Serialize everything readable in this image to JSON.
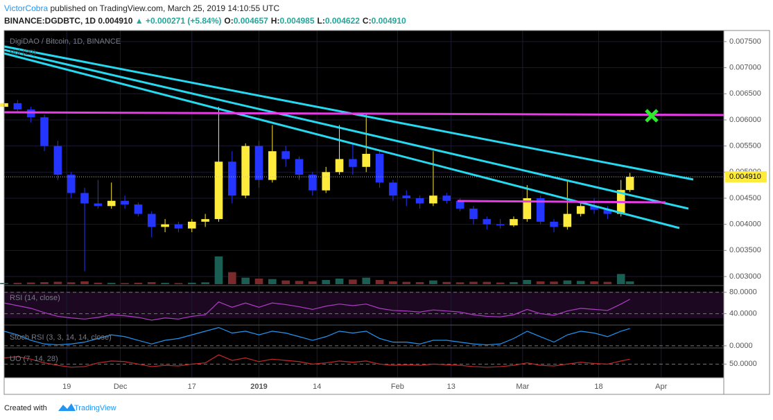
{
  "header": {
    "publisher": "VictorCobra",
    "published": "published on TradingView.com, March 25, 2019 14:10:55 UTC",
    "symbol": "BINANCE:DGDBTC, 1D",
    "last": "0.004910",
    "change": "▲ +0.000271 (+5.84%)",
    "ohlc": [
      {
        "key": "O:",
        "value": "0.004657"
      },
      {
        "key": "H:",
        "value": "0.004985"
      },
      {
        "key": "L:",
        "value": "0.004622"
      },
      {
        "key": "C:",
        "value": "0.004910"
      }
    ]
  },
  "chart_data": [
    {
      "type": "candlestick",
      "title": "DigiDAO / Bitcoin, 1D, BINANCE",
      "volume_title": "Vol (20)",
      "up_color": "#ffeb3b",
      "down_color": "#2435ff",
      "price_label": "0.004910",
      "x": [
        0,
        3,
        6,
        9,
        12,
        15,
        18,
        21,
        24,
        27,
        30,
        33,
        36,
        39,
        42,
        45,
        48,
        51,
        54,
        57,
        60,
        63,
        66,
        69,
        72,
        75,
        78,
        81,
        84,
        87,
        90,
        93,
        96,
        99,
        102,
        105,
        108,
        111,
        114,
        117,
        120,
        123,
        126,
        129,
        132,
        135,
        138,
        140
      ],
      "open": [
        0.00625,
        0.00632,
        0.0062,
        0.00605,
        0.0055,
        0.00495,
        0.0046,
        0.0044,
        0.00435,
        0.00445,
        0.00438,
        0.0042,
        0.00395,
        0.004,
        0.00392,
        0.00405,
        0.0041,
        0.0052,
        0.00455,
        0.0055,
        0.00485,
        0.0054,
        0.00525,
        0.00495,
        0.00465,
        0.005,
        0.00525,
        0.0051,
        0.00535,
        0.0048,
        0.00455,
        0.0045,
        0.0044,
        0.00455,
        0.00445,
        0.0043,
        0.0041,
        0.004,
        0.00398,
        0.0041,
        0.0045,
        0.00405,
        0.00395,
        0.0042,
        0.00435,
        0.00428,
        0.0042,
        0.004657
      ],
      "high": [
        0.0064,
        0.00638,
        0.00625,
        0.0061,
        0.0056,
        0.005,
        0.0047,
        0.00485,
        0.0048,
        0.00455,
        0.00442,
        0.00425,
        0.0041,
        0.00405,
        0.0041,
        0.0042,
        0.00625,
        0.0054,
        0.00555,
        0.0056,
        0.0059,
        0.0055,
        0.0053,
        0.005,
        0.0051,
        0.0059,
        0.00555,
        0.0061,
        0.0054,
        0.00485,
        0.00465,
        0.00455,
        0.0054,
        0.0046,
        0.0045,
        0.00435,
        0.00415,
        0.0041,
        0.00415,
        0.00475,
        0.00455,
        0.0041,
        0.00485,
        0.0044,
        0.0045,
        0.00435,
        0.00485,
        0.004985
      ],
      "low": [
        0.0062,
        0.00615,
        0.00595,
        0.0054,
        0.00485,
        0.0045,
        0.0031,
        0.0043,
        0.0043,
        0.0043,
        0.00415,
        0.00375,
        0.00385,
        0.00385,
        0.00385,
        0.00395,
        0.00405,
        0.0044,
        0.0045,
        0.0047,
        0.0048,
        0.0051,
        0.00485,
        0.00455,
        0.0046,
        0.00495,
        0.00495,
        0.005,
        0.0047,
        0.00445,
        0.00435,
        0.0043,
        0.00435,
        0.0044,
        0.00425,
        0.004,
        0.0039,
        0.00392,
        0.00395,
        0.00405,
        0.004,
        0.00385,
        0.0039,
        0.00415,
        0.0042,
        0.0041,
        0.00415,
        0.004622
      ],
      "close": [
        0.00632,
        0.0062,
        0.00605,
        0.0055,
        0.00495,
        0.0046,
        0.0044,
        0.00435,
        0.00445,
        0.00438,
        0.0042,
        0.00395,
        0.004,
        0.00392,
        0.00405,
        0.0041,
        0.0052,
        0.00455,
        0.0055,
        0.00485,
        0.0054,
        0.00525,
        0.00495,
        0.00465,
        0.005,
        0.00525,
        0.0051,
        0.00535,
        0.0048,
        0.00455,
        0.0045,
        0.0044,
        0.00455,
        0.00445,
        0.0043,
        0.0041,
        0.004,
        0.00398,
        0.0041,
        0.0045,
        0.00405,
        0.00395,
        0.0042,
        0.00435,
        0.00428,
        0.0042,
        0.004657,
        0.00491
      ],
      "volume": [
        12,
        14,
        18,
        22,
        26,
        20,
        30,
        16,
        14,
        12,
        15,
        22,
        14,
        12,
        16,
        20,
        300,
        130,
        70,
        60,
        55,
        40,
        35,
        30,
        45,
        60,
        50,
        70,
        45,
        30,
        25,
        22,
        40,
        24,
        20,
        26,
        25,
        18,
        22,
        45,
        30,
        28,
        40,
        35,
        30,
        25,
        110,
        30
      ],
      "xlim": [
        0,
        161
      ],
      "ylim": [
        0.002854,
        0.007712
      ],
      "xticks": [
        {
          "value": 14,
          "label": "19"
        },
        {
          "value": 26,
          "label": "Dec"
        },
        {
          "value": 42,
          "label": "17"
        },
        {
          "value": 57,
          "label": "2019"
        },
        {
          "value": 70,
          "label": "14"
        },
        {
          "value": 88,
          "label": "Feb"
        },
        {
          "value": 100,
          "label": "13"
        },
        {
          "value": 116,
          "label": "Mar"
        },
        {
          "value": 133,
          "label": "18"
        },
        {
          "value": 147,
          "label": "Apr"
        }
      ],
      "yticks": [
        {
          "value": 0.003,
          "label": "0.003000"
        },
        {
          "value": 0.0035,
          "label": "0.003500"
        },
        {
          "value": 0.004,
          "label": "0.004000"
        },
        {
          "value": 0.0045,
          "label": "0.004500"
        },
        {
          "value": 0.005,
          "label": "0.005000"
        },
        {
          "value": 0.0055,
          "label": "0.005500"
        },
        {
          "value": 0.006,
          "label": "0.006000"
        },
        {
          "value": 0.0065,
          "label": "0.006500"
        },
        {
          "value": 0.007,
          "label": "0.007000"
        },
        {
          "value": 0.0075,
          "label": "0.007500"
        }
      ],
      "grid": true
    },
    {
      "type": "line",
      "title": "RSI (14, close)",
      "color": "#b03cc8",
      "ylim": [
        20,
        90
      ],
      "yticks": [
        {
          "value": 80,
          "label": "80.0000"
        },
        {
          "value": 40,
          "label": "40.0000"
        }
      ],
      "values": [
        60,
        55,
        50,
        42,
        35,
        32,
        30,
        33,
        38,
        36,
        33,
        28,
        32,
        30,
        35,
        38,
        62,
        52,
        60,
        52,
        60,
        57,
        53,
        48,
        54,
        58,
        55,
        58,
        50,
        46,
        45,
        43,
        47,
        45,
        43,
        38,
        35,
        34,
        38,
        48,
        40,
        37,
        45,
        50,
        48,
        46,
        58,
        67
      ]
    },
    {
      "type": "line",
      "title": "Stoch RSI (3, 3, 14, 14, close)",
      "color": "#2196f3",
      "ylim": [
        -8,
        110
      ],
      "yticks": [
        {
          "value": 0,
          "label": "0.0000"
        }
      ],
      "values": [
        80,
        60,
        30,
        10,
        5,
        10,
        20,
        40,
        60,
        50,
        30,
        10,
        30,
        40,
        60,
        80,
        100,
        70,
        80,
        60,
        80,
        70,
        50,
        30,
        50,
        80,
        70,
        80,
        40,
        20,
        20,
        10,
        30,
        30,
        20,
        10,
        5,
        10,
        40,
        80,
        50,
        20,
        60,
        80,
        70,
        50,
        80,
        95
      ]
    },
    {
      "type": "line",
      "title": "UO (7, 14, 28)",
      "color": "#c62828",
      "ylim": [
        28,
        75
      ],
      "yticks": [
        {
          "value": 50,
          "label": "50.0000"
        }
      ],
      "values": [
        60,
        62,
        58,
        52,
        48,
        45,
        46,
        52,
        55,
        54,
        50,
        46,
        48,
        47,
        50,
        52,
        65,
        56,
        60,
        54,
        58,
        56,
        54,
        50,
        52,
        55,
        53,
        55,
        50,
        48,
        49,
        48,
        50,
        49,
        48,
        46,
        45,
        46,
        48,
        52,
        48,
        47,
        50,
        53,
        51,
        50,
        55,
        58
      ]
    }
  ],
  "footer": {
    "created": "Created with",
    "brand": "TradingView"
  }
}
